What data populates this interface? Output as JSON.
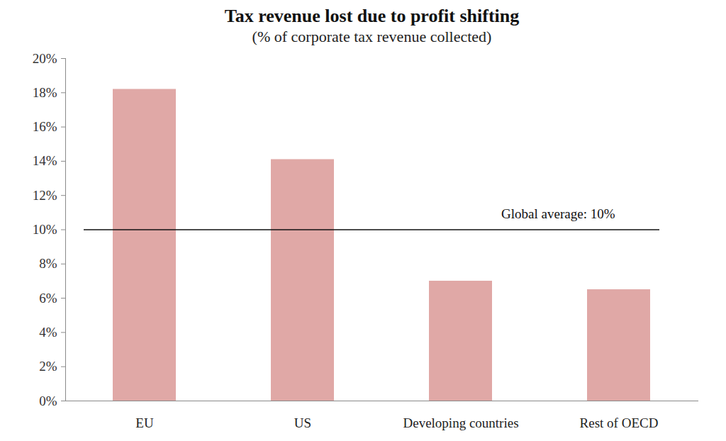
{
  "chart_data": {
    "type": "bar",
    "title": "Tax revenue lost due to profit shifting",
    "subtitle": "(% of corporate tax revenue collected)",
    "categories": [
      "EU",
      "US",
      "Developing countries",
      "Rest of OECD"
    ],
    "values": [
      18.2,
      14.1,
      7.0,
      6.5
    ],
    "color": "#e0a8a6",
    "ylim": [
      0,
      20
    ],
    "yticks": [
      {
        "value": 0,
        "label": "0%"
      },
      {
        "value": 2,
        "label": "2%"
      },
      {
        "value": 4,
        "label": "4%"
      },
      {
        "value": 6,
        "label": "6%"
      },
      {
        "value": 8,
        "label": "8%"
      },
      {
        "value": 10,
        "label": "10%"
      },
      {
        "value": 12,
        "label": "12%"
      },
      {
        "value": 14,
        "label": "14%"
      },
      {
        "value": 16,
        "label": "16%"
      },
      {
        "value": 18,
        "label": "18%"
      },
      {
        "value": 20,
        "label": "20%"
      }
    ],
    "grid": false,
    "reference_line": {
      "value": 10,
      "label": "Global average: 10%"
    }
  }
}
